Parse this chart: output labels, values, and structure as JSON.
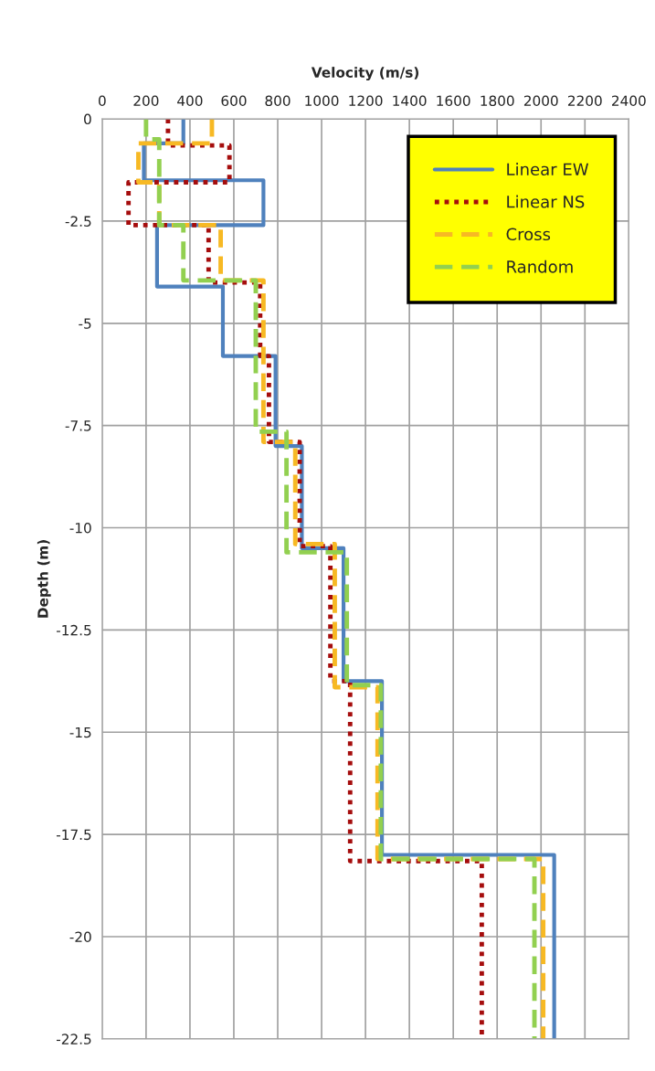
{
  "chart_data": {
    "type": "line",
    "xlabel": "Velocity (m/s)",
    "ylabel": "Depth (m)",
    "xlim": [
      0,
      2400
    ],
    "xticks": [
      0,
      200,
      400,
      600,
      800,
      1000,
      1200,
      1400,
      1600,
      1800,
      2000,
      2200,
      2400
    ],
    "ylim": [
      -22.5,
      0
    ],
    "yticks": [
      0,
      -2.5,
      -5,
      -7.5,
      -10,
      -12.5,
      -15,
      -17.5,
      -20,
      -22.5
    ],
    "grid": true,
    "legend": "top right",
    "marker": "none",
    "series": [
      {
        "name": "Linear EW",
        "color": "#4f81bd",
        "line_style": "solid",
        "x": [
          370,
          370,
          190,
          190,
          735,
          735,
          250,
          250,
          550,
          550,
          790,
          790,
          910,
          910,
          1100,
          1100,
          1275,
          1275,
          2060,
          2060
        ],
        "values": [
          0,
          -0.6,
          -0.6,
          -1.5,
          -1.5,
          -2.6,
          -2.6,
          -4.1,
          -4.1,
          -5.8,
          -5.8,
          -8.0,
          -8.0,
          -10.5,
          -10.5,
          -13.75,
          -13.75,
          -18.0,
          -18.0,
          -22.5
        ]
      },
      {
        "name": "Linear NS",
        "color": "#a50d0d",
        "line_style": "dotted",
        "x": [
          300,
          300,
          580,
          580,
          120,
          120,
          485,
          485,
          720,
          720,
          760,
          760,
          900,
          900,
          1040,
          1040,
          1130,
          1130,
          1730,
          1730
        ],
        "values": [
          0,
          -0.65,
          -0.65,
          -1.55,
          -1.55,
          -2.6,
          -2.6,
          -4.0,
          -4.0,
          -5.8,
          -5.8,
          -7.9,
          -7.9,
          -10.45,
          -10.45,
          -13.75,
          -13.75,
          -18.15,
          -18.15,
          -22.5
        ]
      },
      {
        "name": "Cross",
        "color": "#f7b924",
        "line_style": "dashed",
        "x": [
          500,
          500,
          165,
          165,
          260,
          260,
          540,
          540,
          735,
          735,
          880,
          880,
          1060,
          1060,
          1255,
          1255,
          2010,
          2010
        ],
        "values": [
          0,
          -0.6,
          -0.6,
          -1.55,
          -1.55,
          -2.6,
          -2.6,
          -3.95,
          -3.95,
          -7.9,
          -7.9,
          -10.4,
          -10.4,
          -13.9,
          -13.9,
          -18.1,
          -18.1,
          -22.5
        ]
      },
      {
        "name": "Random",
        "color": "#92d050",
        "line_style": "dashed",
        "x": [
          200,
          200,
          260,
          260,
          370,
          370,
          700,
          700,
          840,
          840,
          1115,
          1115,
          1270,
          1270,
          1970,
          1970
        ],
        "values": [
          0,
          -0.5,
          -0.5,
          -2.6,
          -2.6,
          -3.95,
          -3.95,
          -7.65,
          -7.65,
          -10.6,
          -10.6,
          -13.85,
          -13.85,
          -18.1,
          -18.1,
          -22.5
        ]
      }
    ]
  }
}
